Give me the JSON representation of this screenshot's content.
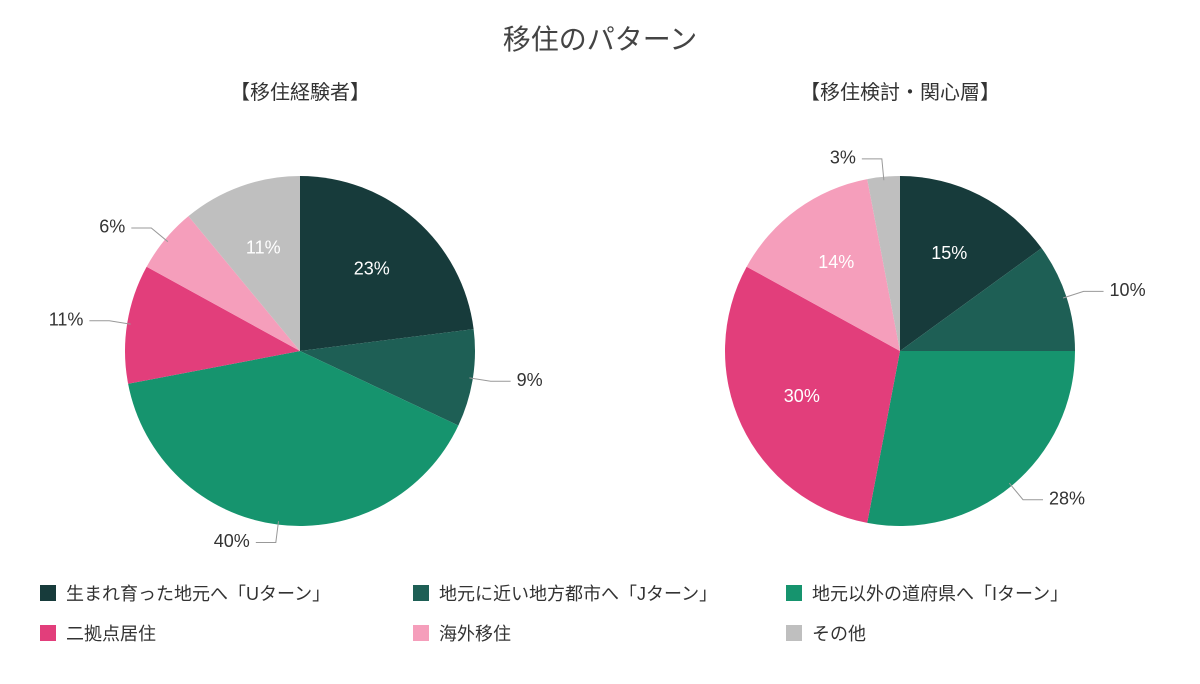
{
  "title": "移住のパターン",
  "background_color": "#ffffff",
  "title_fontsize": 28,
  "subtitle_fontsize": 20,
  "label_fontsize": 18,
  "legend_fontsize": 18,
  "text_color": "#333333",
  "callout_line_color": "#999999",
  "categories": [
    {
      "key": "uturn",
      "label": "生まれ育った地元へ「Uターン」",
      "color": "#173b3b"
    },
    {
      "key": "jturn",
      "label": "地元に近い地方都市へ「Jターン」",
      "color": "#1e5f55"
    },
    {
      "key": "iturn",
      "label": "地元以外の道府県へ「Iターン」",
      "color": "#16946e"
    },
    {
      "key": "dual",
      "label": "二拠点居住",
      "color": "#e23e7b"
    },
    {
      "key": "abroad",
      "label": "海外移住",
      "color": "#f59ebb"
    },
    {
      "key": "other",
      "label": "その他",
      "color": "#bfbfbf"
    }
  ],
  "charts": [
    {
      "id": "experienced",
      "subtitle": "【移住経験者】",
      "type": "pie",
      "radius": 175,
      "start_angle_deg": 0,
      "direction": "clockwise",
      "slices": [
        {
          "key": "uturn",
          "value": 23,
          "label": "23%",
          "label_mode": "inside",
          "label_color": "#ffffff"
        },
        {
          "key": "jturn",
          "value": 9,
          "label": "9%",
          "label_mode": "outside",
          "label_color": "#333333"
        },
        {
          "key": "iturn",
          "value": 40,
          "label": "40%",
          "label_mode": "outside",
          "label_color": "#333333"
        },
        {
          "key": "dual",
          "value": 11,
          "label": "11%",
          "label_mode": "outside",
          "label_color": "#333333"
        },
        {
          "key": "abroad",
          "value": 6,
          "label": "6%",
          "label_mode": "outside",
          "label_color": "#333333"
        },
        {
          "key": "other",
          "value": 11,
          "label": "11%",
          "label_mode": "inside",
          "label_color": "#ffffff"
        }
      ]
    },
    {
      "id": "considering",
      "subtitle": "【移住検討・関心層】",
      "type": "pie",
      "radius": 175,
      "start_angle_deg": 0,
      "direction": "clockwise",
      "slices": [
        {
          "key": "uturn",
          "value": 15,
          "label": "15%",
          "label_mode": "inside",
          "label_color": "#ffffff"
        },
        {
          "key": "jturn",
          "value": 10,
          "label": "10%",
          "label_mode": "outside",
          "label_color": "#333333"
        },
        {
          "key": "iturn",
          "value": 28,
          "label": "28%",
          "label_mode": "outside",
          "label_color": "#333333"
        },
        {
          "key": "dual",
          "value": 30,
          "label": "30%",
          "label_mode": "inside",
          "label_color": "#ffffff"
        },
        {
          "key": "abroad",
          "value": 14,
          "label": "14%",
          "label_mode": "inside",
          "label_color": "#ffffff"
        },
        {
          "key": "other",
          "value": 3,
          "label": "3%",
          "label_mode": "outside",
          "label_color": "#333333"
        }
      ]
    }
  ]
}
